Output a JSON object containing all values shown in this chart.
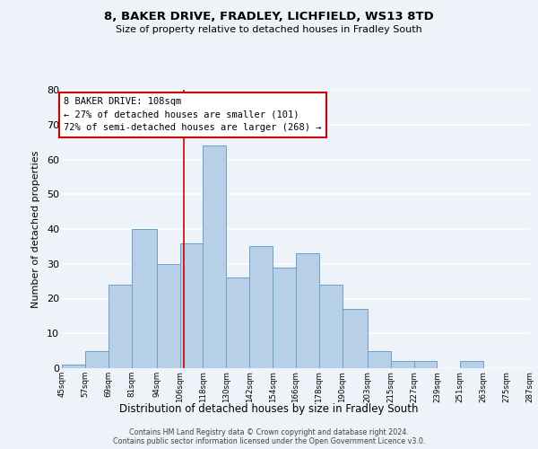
{
  "title": "8, BAKER DRIVE, FRADLEY, LICHFIELD, WS13 8TD",
  "subtitle": "Size of property relative to detached houses in Fradley South",
  "xlabel": "Distribution of detached houses by size in Fradley South",
  "ylabel": "Number of detached properties",
  "footer_line1": "Contains HM Land Registry data © Crown copyright and database right 2024.",
  "footer_line2": "Contains public sector information licensed under the Open Government Licence v3.0.",
  "bin_edges": [
    45,
    57,
    69,
    81,
    94,
    106,
    118,
    130,
    142,
    154,
    166,
    178,
    190,
    203,
    215,
    227,
    239,
    251,
    263,
    275,
    287
  ],
  "bin_counts": [
    1,
    5,
    24,
    40,
    30,
    36,
    64,
    26,
    35,
    29,
    33,
    24,
    17,
    5,
    2,
    2,
    0,
    2,
    0,
    0
  ],
  "bar_color": "#b8cfe8",
  "bar_edge_color": "#6a9fc8",
  "property_size": 108,
  "vline_color": "#cc0000",
  "annotation_line1": "8 BAKER DRIVE: 108sqm",
  "annotation_line2": "← 27% of detached houses are smaller (101)",
  "annotation_line3": "72% of semi-detached houses are larger (268) →",
  "annotation_box_color": "#ffffff",
  "annotation_box_edge": "#cc0000",
  "ylim": [
    0,
    80
  ],
  "yticks": [
    0,
    10,
    20,
    30,
    40,
    50,
    60,
    70,
    80
  ],
  "tick_labels": [
    "45sqm",
    "57sqm",
    "69sqm",
    "81sqm",
    "94sqm",
    "106sqm",
    "118sqm",
    "130sqm",
    "142sqm",
    "154sqm",
    "166sqm",
    "178sqm",
    "190sqm",
    "203sqm",
    "215sqm",
    "227sqm",
    "239sqm",
    "251sqm",
    "263sqm",
    "275sqm",
    "287sqm"
  ],
  "bg_color": "#eef2f9",
  "grid_color": "#ffffff",
  "title_fontsize": 9.5,
  "subtitle_fontsize": 8
}
